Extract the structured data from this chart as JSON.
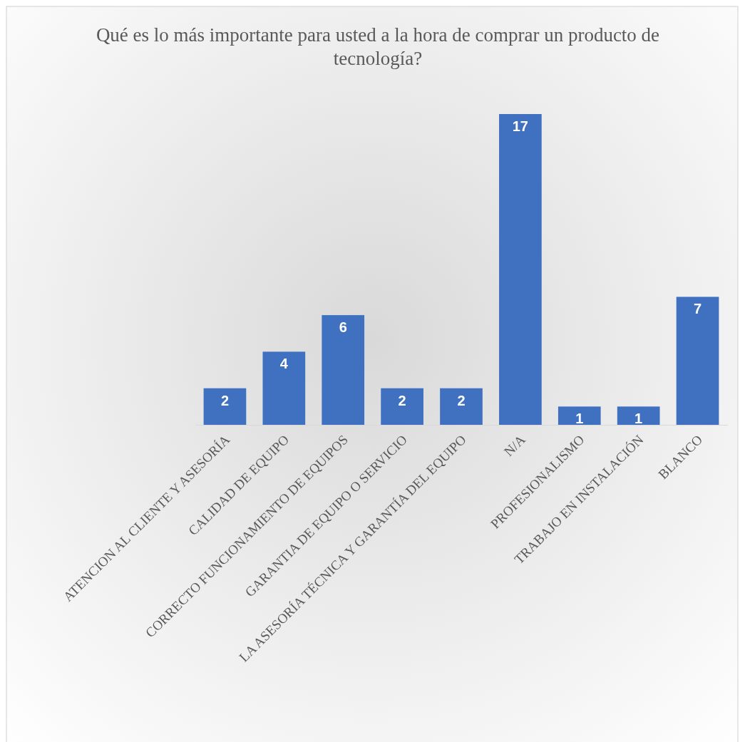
{
  "chart_data": {
    "type": "bar",
    "title": "Qué es lo más importante para usted a la hora de comprar un producto de tecnología?",
    "categories": [
      "ATENCION AL CLIENTE Y ASESORÍA",
      "CALIDAD DE EQUIPO",
      "CORRECTO FUNCIONAMIENTO DE EQUIPOS",
      "GARANTIA DE EQUIPO O SERVICIO",
      "LA ASESORÍA TÉCNICA Y GARANTÍA DEL EQUIPO",
      "N/A",
      "PROFESIONALISMO",
      "TRABAJO EN INSTALACIÓN",
      "BLANCO"
    ],
    "values": [
      2,
      4,
      6,
      2,
      2,
      17,
      1,
      1,
      7
    ],
    "color": "#4070c0",
    "data_labels": true
  }
}
